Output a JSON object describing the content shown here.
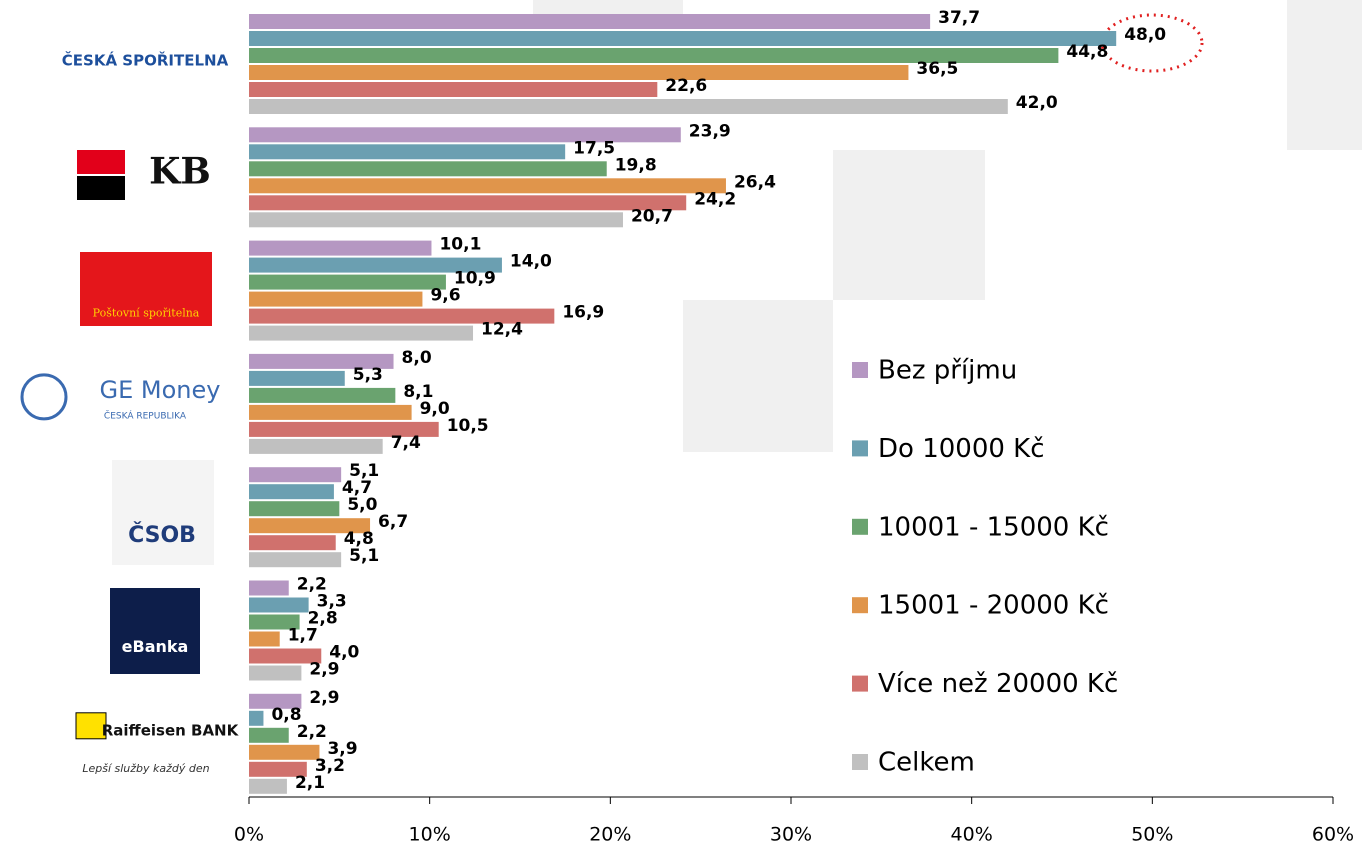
{
  "chart_data": {
    "type": "bar",
    "orientation": "horizontal",
    "categories": [
      "ČESKÁ SPOŘITELNA",
      "KB",
      "Poštovní spořitelna",
      "GE Money",
      "ČSOB",
      "eBanka",
      "Raiffeisen BANK"
    ],
    "category_taglines": [
      null,
      null,
      null,
      "ČESKÁ REPUBLIKA",
      null,
      null,
      "Lepší služby každý den"
    ],
    "series": [
      {
        "name": "Bez příjmu",
        "color": "#b597c2",
        "values": [
          37.7,
          23.9,
          10.1,
          8.0,
          5.1,
          2.2,
          2.9
        ],
        "value_labels": [
          "37,7",
          "23,9",
          "10,1",
          "8,0",
          "5,1",
          "2,2",
          "2,9"
        ]
      },
      {
        "name": "Do 10000 Kč",
        "color": "#6b9fb1",
        "values": [
          48.0,
          17.5,
          14.0,
          5.3,
          4.7,
          3.3,
          0.8
        ],
        "value_labels": [
          "48,0",
          "17,5",
          "14,0",
          "5,3",
          "4,7",
          "3,3",
          "0,8"
        ]
      },
      {
        "name": "10001 - 15000 Kč",
        "color": "#6aa36f",
        "values": [
          44.8,
          19.8,
          10.9,
          8.1,
          5.0,
          2.8,
          2.2
        ],
        "value_labels": [
          "44,8",
          "19,8",
          "10,9",
          "8,1",
          "5,0",
          "2,8",
          "2,2"
        ]
      },
      {
        "name": "15001 - 20000 Kč",
        "color": "#e0954b",
        "values": [
          36.5,
          26.4,
          9.6,
          9.0,
          6.7,
          1.7,
          3.9
        ],
        "value_labels": [
          "36,5",
          "26,4",
          "9,6",
          "9,0",
          "6,7",
          "1,7",
          "3,9"
        ]
      },
      {
        "name": "Více než 20000 Kč",
        "color": "#d0716d",
        "values": [
          22.6,
          24.2,
          16.9,
          10.5,
          4.8,
          4.0,
          3.2
        ],
        "value_labels": [
          "22,6",
          "24,2",
          "16,9",
          "10,5",
          "4,8",
          "4,0",
          "3,2"
        ]
      },
      {
        "name": "Celkem",
        "color": "#c0c0c0",
        "values": [
          42.0,
          20.7,
          12.4,
          7.4,
          5.1,
          2.9,
          2.1
        ],
        "value_labels": [
          "42,0",
          "20,7",
          "12,4",
          "7,4",
          "5,1",
          "2,9",
          "2,1"
        ]
      }
    ],
    "xlim": [
      0,
      60
    ],
    "xticks": [
      {
        "value": 0,
        "label": "0%"
      },
      {
        "value": 10,
        "label": "10%"
      },
      {
        "value": 20,
        "label": "20%"
      },
      {
        "value": 30,
        "label": "30%"
      },
      {
        "value": 40,
        "label": "40%"
      },
      {
        "value": 50,
        "label": "50%"
      },
      {
        "value": 60,
        "label": "60%"
      }
    ],
    "legend": "right"
  }
}
